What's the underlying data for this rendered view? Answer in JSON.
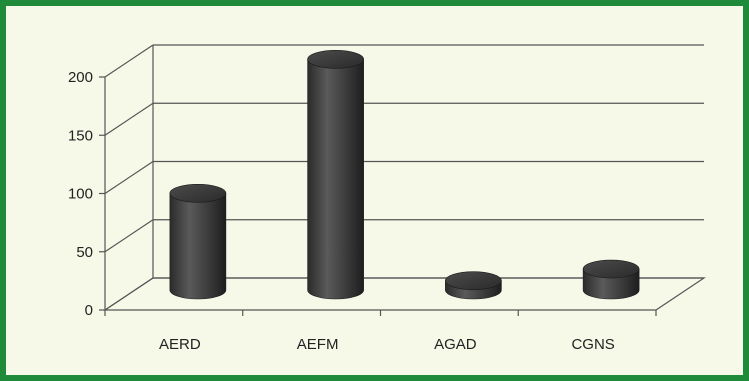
{
  "chart_data": {
    "type": "bar",
    "categories": [
      "AERD",
      "AEFM",
      "AGAD",
      "CGNS"
    ],
    "values": [
      83,
      198,
      8,
      18
    ],
    "ylim": [
      0,
      200
    ],
    "yticks": [
      0,
      50,
      100,
      150,
      200
    ],
    "grid": true,
    "bar_color": "#3a3a3a",
    "frame_color": "#1f8a3a"
  }
}
